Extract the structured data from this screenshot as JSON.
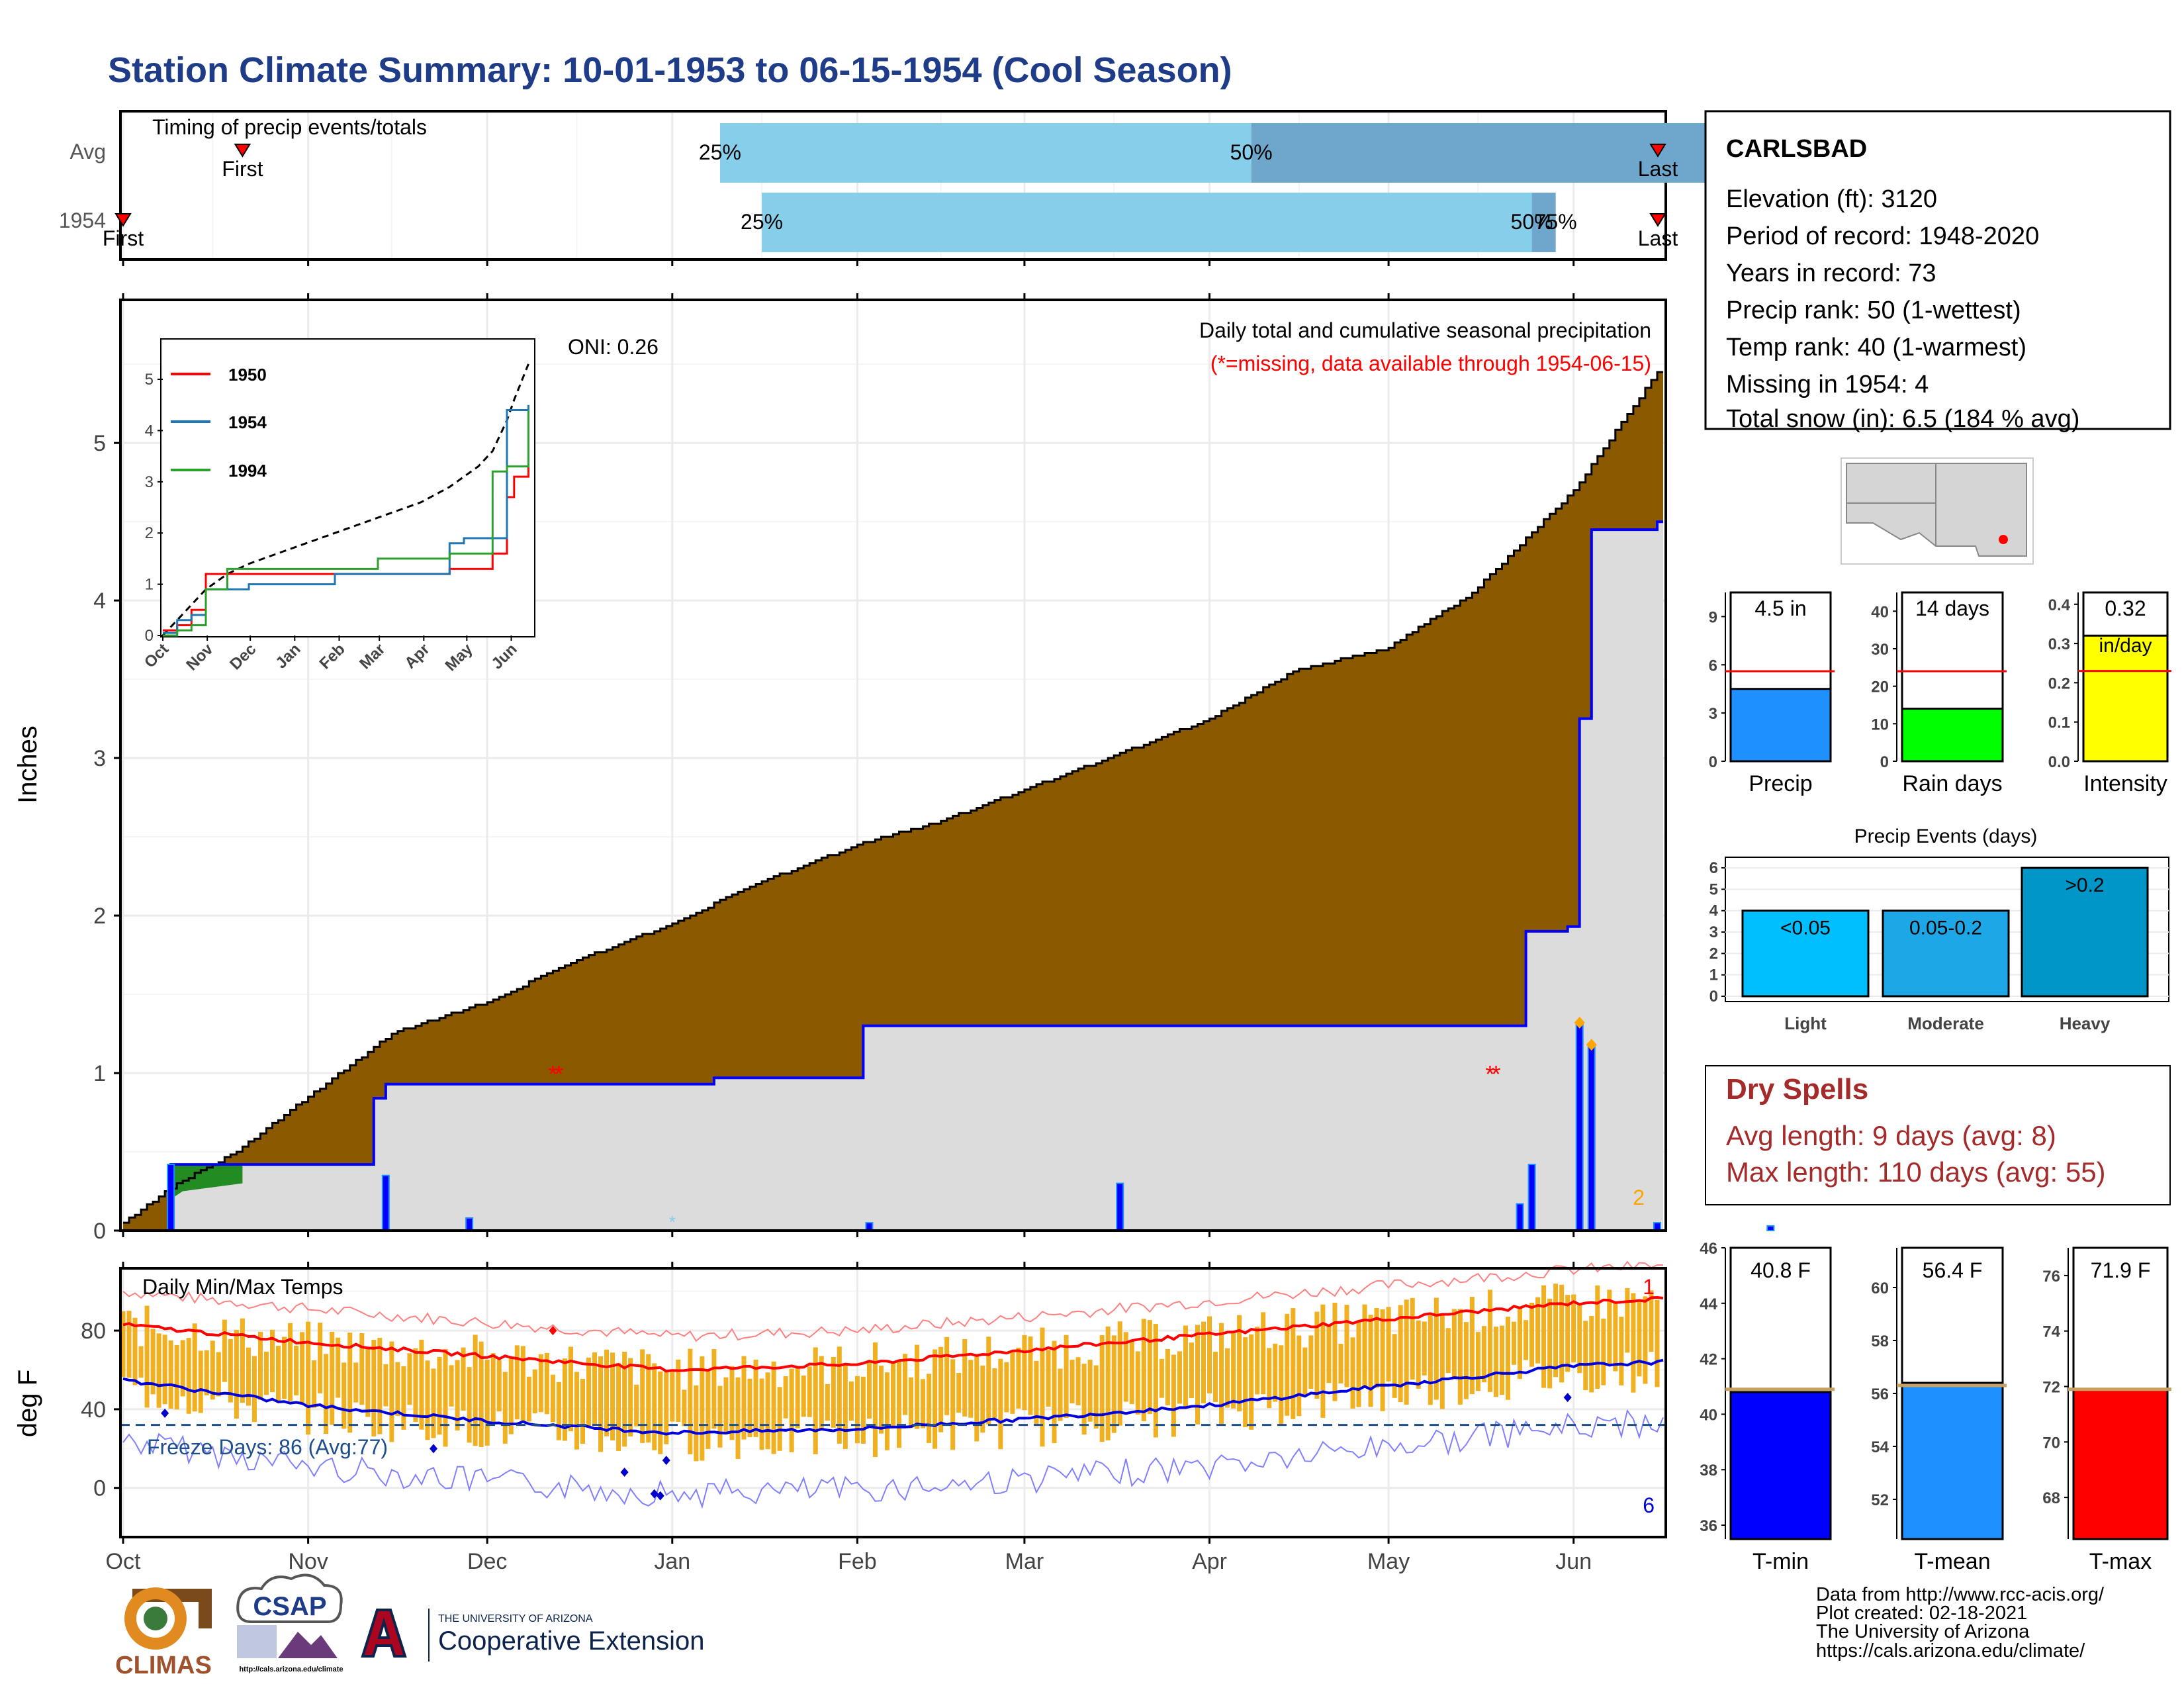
{
  "title": "Station Climate Summary: 10-01-1953 to 06-15-1954 (Cool Season)",
  "colors": {
    "title": "#1f3c88",
    "precip_fill": "#8b5a00",
    "avg_fill": "#dcdcdc",
    "avg_line": "#0000ff",
    "timing_light": "#87ceeb",
    "timing_dark": "#6fa6cc",
    "temp_bar": "#f0b020",
    "temp_max_line": "#ff0000",
    "temp_min_line": "#0000dd",
    "dry_spell_text": "#a52a2a",
    "freeze_line": "#1f4e8c"
  },
  "months": [
    "Oct",
    "Nov",
    "Dec",
    "Jan",
    "Feb",
    "Mar",
    "Apr",
    "May",
    "Jun"
  ],
  "timing_panel": {
    "label": "Timing of precip events/totals",
    "rows": [
      {
        "label": "Avg",
        "first": "First",
        "last": "Last",
        "q25": "25%",
        "q50": "50%",
        "q75": "75%",
        "first_day": 20,
        "q25_day": 100,
        "q50_day": 189,
        "q75_day": 269,
        "last_day": 325
      },
      {
        "label": "1954",
        "first": "First",
        "last": "Last",
        "q25": "25%",
        "q50": "50%",
        "q75": "75%",
        "first_day": 0,
        "q25_day": 107,
        "q50_day": 236,
        "q75_day": 240,
        "last_day": 258
      }
    ]
  },
  "precip_panel": {
    "ylabel": "Inches",
    "oni": "ONI: 0.26",
    "caption1": "Daily total and cumulative seasonal precipitation",
    "caption2": "(*=missing, data available through 1954-06-15)",
    "missing_count_label": "2",
    "yticks": [
      "0",
      "1",
      "2",
      "3",
      "4",
      "5"
    ]
  },
  "inset": {
    "legend": [
      "1950",
      "1954",
      "1994"
    ],
    "legend_colors": [
      "#ff0000",
      "#1f77b4",
      "#2ca02c"
    ],
    "yticks": [
      "0",
      "1",
      "2",
      "3",
      "4",
      "5"
    ],
    "xticks": [
      "Oct",
      "Nov",
      "Dec",
      "Jan",
      "Feb",
      "Mar",
      "Apr",
      "May",
      "Jun"
    ]
  },
  "temp_panel": {
    "label": "Daily Min/Max Temps",
    "ylabel": "deg F",
    "freeze": "Freeze Days: 86 (Avg:77)",
    "top_count": "1",
    "bottom_count": "6",
    "yticks": [
      "0",
      "40",
      "80"
    ]
  },
  "station_box": {
    "name": "CARLSBAD",
    "lines": [
      "Elevation (ft): 3120",
      "Period of record: 1948-2020",
      "Years in record: 73",
      "Precip rank: 50 (1-wettest)",
      "Temp rank: 40 (1-warmest)",
      "Missing in 1954: 4",
      "Total snow (in): 6.5 (184 % avg)"
    ]
  },
  "mini_bars": {
    "precip": {
      "value_label": "4.5 in",
      "label": "Precip",
      "value": 4.5,
      "avg": 5.6,
      "yticks": [
        "0",
        "3",
        "6",
        "9"
      ],
      "ymax": 10.5,
      "color": "#1e90ff"
    },
    "rain_days": {
      "value_label": "14 days",
      "label": "Rain days",
      "value": 14,
      "avg": 24,
      "yticks": [
        "0",
        "10",
        "20",
        "30",
        "40"
      ],
      "ymax": 45,
      "color": "#00ff00"
    },
    "intensity": {
      "value_label": "0.32",
      "value_unit": "in/day",
      "label": "Intensity",
      "value": 0.32,
      "avg": 0.23,
      "yticks": [
        "0.0",
        "0.1",
        "0.2",
        "0.3",
        "0.4"
      ],
      "ymax": 0.43,
      "color": "#ffff00"
    }
  },
  "precip_events": {
    "title": "Precip Events (days)",
    "categories": [
      "Light",
      "Moderate",
      "Heavy"
    ],
    "bar_labels": [
      "<0.05",
      "0.05-0.2",
      ">0.2"
    ],
    "values": [
      4,
      4,
      6
    ],
    "colors": [
      "#00bfff",
      "#1ea7e6",
      "#0096c8"
    ],
    "yticks": [
      "0",
      "1",
      "2",
      "3",
      "4",
      "5",
      "6"
    ]
  },
  "dry_spells": {
    "title": "Dry Spells",
    "avg": "Avg length: 9 days (avg: 8)",
    "max": "Max length: 110 days (avg: 55)"
  },
  "temp_bars": {
    "tmin": {
      "value_label": "40.8 F",
      "label": "T-min",
      "value": 40.8,
      "avg": 40.9,
      "yticks": [
        "36",
        "38",
        "40",
        "42",
        "44",
        "46"
      ],
      "ymin": 35.5,
      "ymax": 46,
      "color": "#0000ff"
    },
    "tmean": {
      "value_label": "56.4 F",
      "label": "T-mean",
      "value": 56.4,
      "avg": 56.3,
      "yticks": [
        "52",
        "54",
        "56",
        "58",
        "60"
      ],
      "ymin": 50.5,
      "ymax": 61.5,
      "color": "#1e90ff"
    },
    "tmax": {
      "value_label": "71.9 F",
      "label": "T-max",
      "value": 71.9,
      "avg": 71.9,
      "yticks": [
        "68",
        "70",
        "72",
        "74",
        "76"
      ],
      "ymin": 66.5,
      "ymax": 77,
      "color": "#ff0000"
    }
  },
  "footer": {
    "lines": [
      "Data from http://www.rcc-acis.org/",
      "Plot created: 02-18-2021",
      "The University of Arizona",
      "https://cals.arizona.edu/climate/"
    ],
    "logo_climas": "CLIMAS",
    "logo_csap": "CSAP",
    "logo_csap_url": "http://cals.arizona.edu/climate",
    "ua_small": "THE UNIVERSITY OF ARIZONA",
    "ua_big": "Cooperative Extension"
  },
  "chart_data": [
    {
      "type": "area",
      "title": "Daily total and cumulative seasonal precipitation",
      "ylabel": "Inches",
      "ylim": [
        0,
        5.9
      ],
      "x": [
        "Oct 1",
        "Oct 10",
        "Oct 20",
        "Nov 1",
        "Nov 15",
        "Dec 1",
        "Dec 15",
        "Jan 1",
        "Jan 15",
        "Feb 1",
        "Feb 15",
        "Mar 1",
        "Mar 15",
        "Apr 1",
        "Apr 15",
        "May 1",
        "May 15",
        "Jun 1",
        "Jun 15"
      ],
      "series": [
        {
          "name": "avg",
          "values": [
            0.05,
            0.3,
            0.5,
            0.85,
            1.25,
            1.45,
            1.7,
            1.95,
            2.2,
            2.45,
            2.6,
            2.8,
            3.0,
            3.25,
            3.55,
            3.7,
            4.05,
            4.7,
            5.45
          ]
        },
        {
          "name": "1954",
          "values": [
            0.0,
            0.42,
            0.42,
            0.84,
            0.93,
            0.93,
            0.97,
            1.3,
            1.3,
            1.3,
            1.3,
            1.3,
            1.3,
            1.3,
            1.9,
            1.9,
            1.93,
            4.45,
            4.5
          ]
        }
      ],
      "daily_bars": [
        {
          "day": 8,
          "value": 0.42
        },
        {
          "day": 43,
          "value": 0.35
        },
        {
          "day": 57,
          "value": 0.08
        },
        {
          "day": 121,
          "value": 0.05
        },
        {
          "day": 167,
          "value": 0.3
        },
        {
          "day": 213,
          "value": 0.07
        },
        {
          "day": 235,
          "value": 0.2
        },
        {
          "day": 252,
          "value": 0.42
        },
        {
          "day": 276,
          "value": 0.03
        },
        {
          "day": 325,
          "value": 1.32
        },
        {
          "day": 320,
          "value": 1.18
        },
        {
          "day": 343,
          "value": 0.05
        }
      ]
    },
    {
      "type": "line",
      "title": "Inset cumulative precipitation",
      "ylim": [
        0,
        5.5
      ],
      "x_days": [
        0,
        10,
        20,
        30,
        45,
        60,
        90,
        120,
        150,
        180,
        200,
        210,
        220,
        230,
        240,
        245,
        255
      ],
      "series": [
        {
          "name": "avg",
          "values": [
            0,
            0.3,
            0.6,
            0.9,
            1.2,
            1.4,
            1.7,
            2.0,
            2.3,
            2.6,
            2.9,
            3.1,
            3.3,
            3.6,
            4.2,
            4.6,
            5.3
          ]
        },
        {
          "name": "1950",
          "values": [
            0.1,
            0.2,
            0.5,
            1.2,
            1.2,
            1.2,
            1.2,
            1.2,
            1.2,
            1.2,
            1.3,
            1.3,
            1.3,
            1.6,
            2.7,
            3.1,
            3.3
          ]
        },
        {
          "name": "1954",
          "values": [
            0.05,
            0.3,
            0.4,
            0.9,
            0.9,
            1.0,
            1.0,
            1.2,
            1.2,
            1.2,
            1.8,
            1.9,
            1.9,
            1.9,
            4.4,
            4.4,
            4.5
          ]
        },
        {
          "name": "1994",
          "values": [
            0.0,
            0.1,
            0.2,
            0.9,
            1.3,
            1.3,
            1.3,
            1.3,
            1.5,
            1.5,
            1.6,
            1.6,
            1.6,
            3.2,
            3.3,
            3.3,
            4.4
          ]
        }
      ]
    },
    {
      "type": "bar",
      "title": "Daily Min/Max Temps",
      "ylabel": "deg F",
      "ylim": [
        -25,
        110
      ],
      "x": [
        "Oct 1",
        "Nov 1",
        "Dec 1",
        "Jan 1",
        "Feb 1",
        "Mar 1",
        "Apr 1",
        "May 1",
        "Jun 1",
        "Jun 15"
      ],
      "series": [
        {
          "name": "avg max",
          "values": [
            83,
            74,
            67,
            60,
            63,
            70,
            78,
            86,
            94,
            96
          ]
        },
        {
          "name": "avg min",
          "values": [
            55,
            42,
            34,
            28,
            30,
            35,
            42,
            52,
            62,
            64
          ]
        }
      ],
      "freeze_line": 32
    }
  ]
}
